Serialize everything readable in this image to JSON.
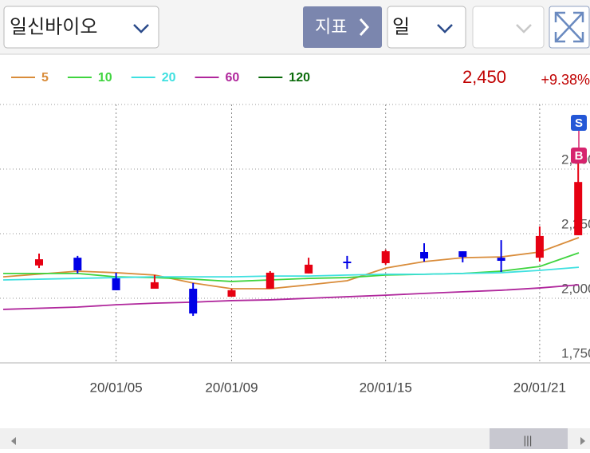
{
  "header": {
    "stock": "일신바이오",
    "indicator_button": "지표",
    "period": "일",
    "price": "2,450",
    "change": "+9.38%",
    "sell_marker": "S",
    "buy_marker": "B"
  },
  "chart_data": {
    "type": "candlestick",
    "categories": [
      null,
      null,
      "20/01/05",
      null,
      null,
      "20/01/09",
      null,
      null,
      null,
      "20/01/15",
      null,
      null,
      null,
      "20/01/21",
      null
    ],
    "open": [
      2127,
      2157,
      2077,
      2037,
      2037,
      2006,
      2037,
      2096,
      2142,
      2136,
      2179,
      2182,
      2157,
      2157,
      2244
    ],
    "high": [
      2173,
      2164,
      2099,
      2090,
      2059,
      2037,
      2105,
      2157,
      2164,
      2188,
      2213,
      2182,
      2225,
      2278,
      2552
    ],
    "low": [
      2117,
      2096,
      2031,
      2037,
      1932,
      2006,
      2037,
      2096,
      2114,
      2130,
      2142,
      2139,
      2102,
      2142,
      2244
    ],
    "close": [
      2151,
      2108,
      2031,
      2062,
      1941,
      2031,
      2099,
      2130,
      2136,
      2182,
      2154,
      2160,
      2145,
      2241,
      2450
    ],
    "up_color": "#e60012",
    "down_color": "#0000e6",
    "series": [
      {
        "name": "5",
        "color": "#d98c3a",
        "values": [
          2083,
          2105,
          2099,
          2090,
          2059,
          2037,
          2037,
          2052,
          2068,
          2117,
          2142,
          2157,
          2160,
          2179,
          2235
        ]
      },
      {
        "name": "10",
        "color": "#3fd43f",
        "values": [
          2096,
          2096,
          2083,
          2080,
          2074,
          2065,
          2071,
          2077,
          2080,
          2090,
          2093,
          2096,
          2105,
          2123,
          2176
        ]
      },
      {
        "name": "20",
        "color": "#3ee0e0",
        "values": [
          2071,
          2077,
          2080,
          2083,
          2083,
          2083,
          2086,
          2086,
          2090,
          2093,
          2093,
          2096,
          2099,
          2108,
          2120
        ]
      },
      {
        "name": "60",
        "color": "#b0279c",
        "values": [
          1957,
          1966,
          1975,
          1981,
          1985,
          1991,
          1994,
          2000,
          2006,
          2012,
          2019,
          2025,
          2031,
          2040,
          2052
        ]
      },
      {
        "name": "120",
        "color": "#0a6b0a",
        "values": [
          null,
          null,
          null,
          null,
          null,
          null,
          null,
          null,
          null,
          null,
          null,
          null,
          null,
          null,
          null
        ]
      }
    ],
    "ylim": [
      1750,
      2750
    ],
    "yticks": [
      {
        "value": 1750,
        "label": "1,750"
      },
      {
        "value": 2000,
        "label": "2,000"
      },
      {
        "value": 2250,
        "label": "2,250"
      },
      {
        "value": 2500,
        "label": "2,500"
      }
    ],
    "grid": true
  }
}
